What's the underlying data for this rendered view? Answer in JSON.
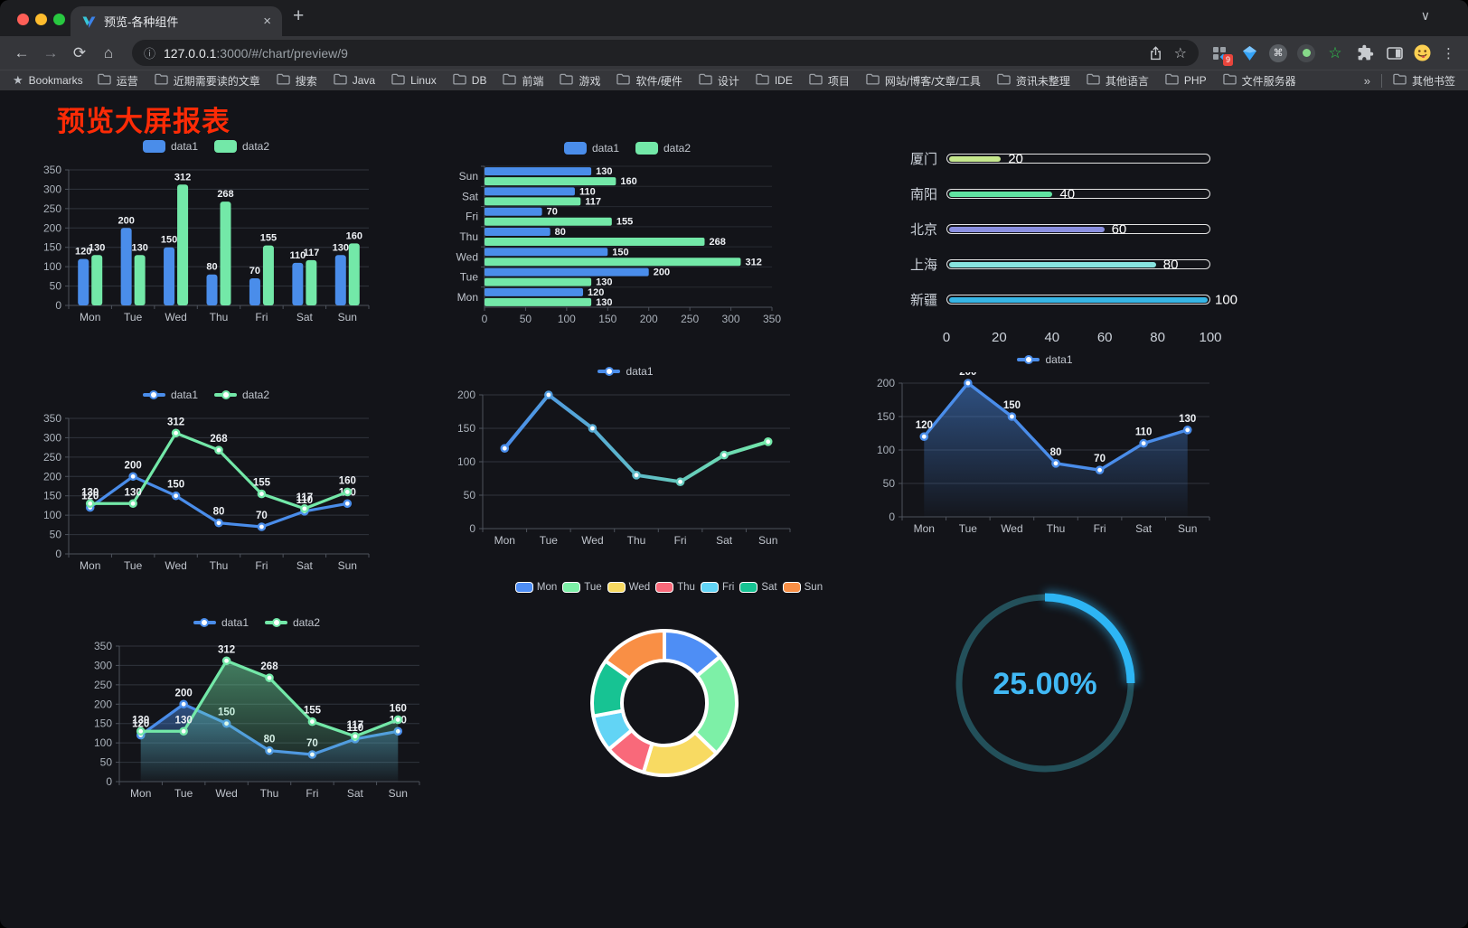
{
  "browser": {
    "tab_title": "预览-各种组件",
    "url_host": "127.0.0.1",
    "url_rest": ":3000/#/chart/preview/9",
    "extension_badge": "9",
    "bookmarks_label": "Bookmarks",
    "bookmarks": [
      "运营",
      "近期需要读的文章",
      "搜索",
      "Java",
      "Linux",
      "DB",
      "前端",
      "游戏",
      "软件/硬件",
      "设计",
      "IDE",
      "项目",
      "网站/博客/文章/工具",
      "资讯未整理",
      "其他语言",
      "PHP",
      "文件服务器"
    ],
    "bookmarks_overflow": "»",
    "other_bookmarks": "其他书签"
  },
  "page": {
    "title": "预览大屏报表",
    "title_color": "#fd2b06"
  },
  "chart_data": [
    {
      "id": "grouped-bar",
      "type": "bar",
      "categories": [
        "Mon",
        "Tue",
        "Wed",
        "Thu",
        "Fri",
        "Sat",
        "Sun"
      ],
      "series": [
        {
          "name": "data1",
          "color": "#4a8dea",
          "values": [
            120,
            200,
            150,
            80,
            70,
            110,
            130
          ]
        },
        {
          "name": "data2",
          "color": "#73e8a8",
          "values": [
            130,
            130,
            312,
            268,
            155,
            117,
            160
          ]
        }
      ],
      "ylim": [
        0,
        350
      ],
      "ytick": 50,
      "labels": true,
      "legend_position": "top"
    },
    {
      "id": "horizontal-bar",
      "type": "hbar",
      "categories": [
        "Mon",
        "Tue",
        "Wed",
        "Thu",
        "Fri",
        "Sat",
        "Sun"
      ],
      "series": [
        {
          "name": "data1",
          "color": "#4a8dea",
          "values": [
            120,
            200,
            150,
            80,
            70,
            110,
            130
          ]
        },
        {
          "name": "data2",
          "color": "#73e8a8",
          "values": [
            130,
            130,
            312,
            268,
            155,
            117,
            160
          ]
        }
      ],
      "xlim": [
        0,
        350
      ],
      "xtick": 50,
      "labels": true,
      "legend_position": "top"
    },
    {
      "id": "progress-bars",
      "type": "progress",
      "max": 100,
      "axis_ticks": [
        0,
        20,
        40,
        60,
        80,
        100
      ],
      "rows": [
        {
          "label": "厦门",
          "value": 20,
          "color": "#c6e88d"
        },
        {
          "label": "南阳",
          "value": 40,
          "color": "#5fe3a1"
        },
        {
          "label": "北京",
          "value": 60,
          "color": "#8a8fe0"
        },
        {
          "label": "上海",
          "value": 80,
          "color": "#87e3df"
        },
        {
          "label": "新疆",
          "value": 100,
          "color": "#36b5e5"
        }
      ]
    },
    {
      "id": "line-basic",
      "type": "line",
      "categories": [
        "Mon",
        "Tue",
        "Wed",
        "Thu",
        "Fri",
        "Sat",
        "Sun"
      ],
      "series": [
        {
          "name": "data1",
          "color": "#4a8dea",
          "values": [
            120,
            200,
            150,
            80,
            70,
            110,
            130
          ]
        },
        {
          "name": "data2",
          "color": "#73e8a8",
          "values": [
            130,
            130,
            312,
            268,
            155,
            117,
            160
          ]
        }
      ],
      "ylim": [
        0,
        350
      ],
      "ytick": 50,
      "labels": true,
      "legend_position": "top"
    },
    {
      "id": "gradient-line",
      "type": "line",
      "categories": [
        "Mon",
        "Tue",
        "Wed",
        "Thu",
        "Fri",
        "Sat",
        "Sun"
      ],
      "series": [
        {
          "name": "data1",
          "gradient": [
            "#4a8dea",
            "#73e8a8"
          ],
          "values": [
            120,
            200,
            150,
            80,
            70,
            110,
            130
          ]
        }
      ],
      "ylim": [
        0,
        200
      ],
      "ytick": 50,
      "labels": false,
      "legend_position": "top"
    },
    {
      "id": "area-line",
      "type": "line",
      "categories": [
        "Mon",
        "Tue",
        "Wed",
        "Thu",
        "Fri",
        "Sat",
        "Sun"
      ],
      "series": [
        {
          "name": "data1",
          "color": "#4a8dea",
          "area": true,
          "values": [
            120,
            200,
            150,
            80,
            70,
            110,
            130
          ]
        }
      ],
      "ylim": [
        0,
        200
      ],
      "ytick": 50,
      "labels": true,
      "legend_position": "top"
    },
    {
      "id": "double-area-line",
      "type": "line",
      "categories": [
        "Mon",
        "Tue",
        "Wed",
        "Thu",
        "Fri",
        "Sat",
        "Sun"
      ],
      "series": [
        {
          "name": "data1",
          "color": "#4a8dea",
          "area": true,
          "values": [
            120,
            200,
            150,
            80,
            70,
            110,
            130
          ]
        },
        {
          "name": "data2",
          "color": "#73e8a8",
          "area": true,
          "values": [
            130,
            130,
            312,
            268,
            155,
            117,
            160
          ]
        }
      ],
      "ylim": [
        0,
        350
      ],
      "ytick": 50,
      "labels": true,
      "legend_position": "top"
    },
    {
      "id": "donut",
      "type": "donut",
      "items": [
        {
          "name": "Mon",
          "value": 120,
          "color": "#4e8ef5"
        },
        {
          "name": "Tue",
          "value": 200,
          "color": "#7df0a7"
        },
        {
          "name": "Wed",
          "value": 150,
          "color": "#f8da62"
        },
        {
          "name": "Thu",
          "value": 80,
          "color": "#f9697a"
        },
        {
          "name": "Fri",
          "value": 70,
          "color": "#62d4f5"
        },
        {
          "name": "Sat",
          "value": 110,
          "color": "#17c393"
        },
        {
          "name": "Sun",
          "value": 130,
          "color": "#f98f45"
        }
      ],
      "legend_position": "top"
    },
    {
      "id": "gauge",
      "type": "gauge",
      "value": 25,
      "max": 100,
      "label": "25.00%",
      "color": "#2db5f4",
      "track_color": "#23505a",
      "text_color": "#41b9f5"
    }
  ]
}
